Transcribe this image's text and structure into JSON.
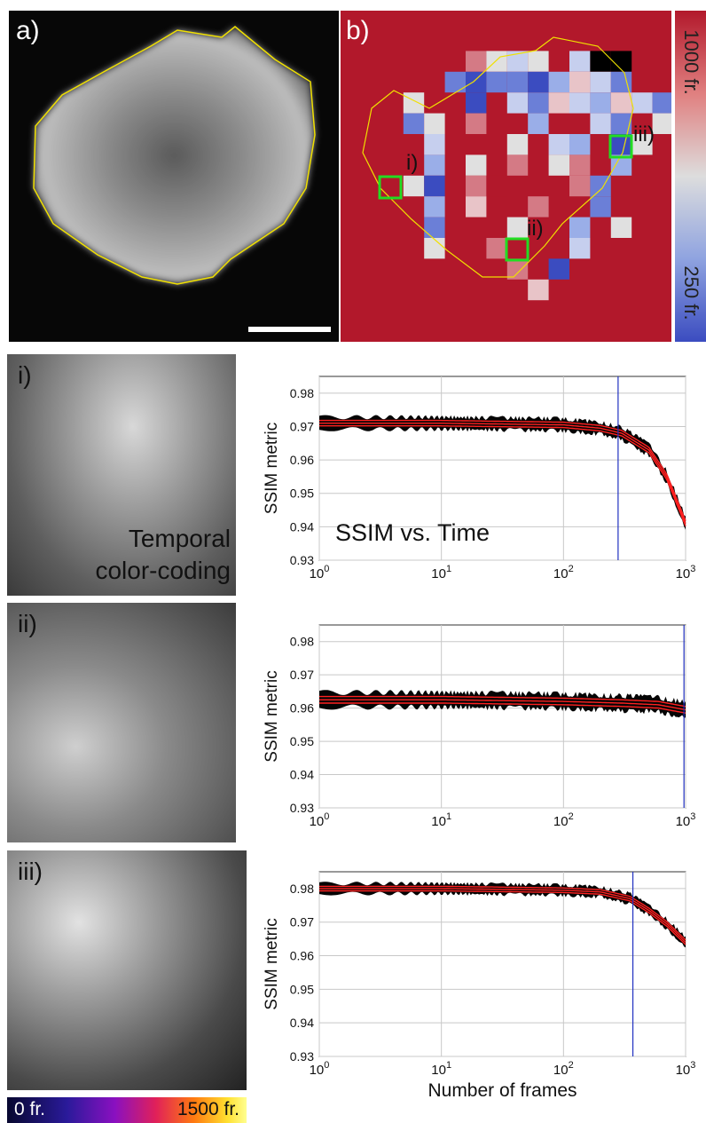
{
  "panels": {
    "a_label": "a)",
    "b_label": "b)",
    "roi_labels": [
      "i)",
      "ii)",
      "iii)"
    ],
    "colorbar_top": "1000 fr.",
    "colorbar_bottom": "250 fr.",
    "temporal_caption_1": "Temporal",
    "temporal_caption_2": "color-coding",
    "time_bar_left": "0 fr.",
    "time_bar_right": "1500 fr.",
    "title_plot1": "SSIM vs. Time"
  },
  "colors": {
    "heat_red": "#b2182b",
    "heat_blue": "#3b4cc0",
    "outline_yellow": "#f0e000",
    "roi_green": "#22dd22",
    "fit_red": "#ff2020",
    "marker_blue": "#2030c0"
  },
  "chart_data": [
    {
      "type": "line",
      "title": "SSIM vs. Time",
      "xlabel": "",
      "ylabel": "SSIM metric",
      "xscale": "log",
      "xlim": [
        1,
        1000
      ],
      "ylim": [
        0.93,
        0.985
      ],
      "xticks": [
        "10^0",
        "10^1",
        "10^2",
        "10^3"
      ],
      "yticks": [
        "0.93",
        "0.94",
        "0.95",
        "0.96",
        "0.97",
        "0.98"
      ],
      "grid": true,
      "marker_frame": 280,
      "series": [
        {
          "x": [
            1,
            10,
            100,
            200,
            300,
            500,
            700,
            1000
          ],
          "values": [
            0.971,
            0.971,
            0.9705,
            0.9695,
            0.968,
            0.963,
            0.955,
            0.941
          ]
        }
      ]
    },
    {
      "type": "line",
      "xlabel": "",
      "ylabel": "SSIM metric",
      "xscale": "log",
      "xlim": [
        1,
        1000
      ],
      "ylim": [
        0.93,
        0.985
      ],
      "xticks": [
        "10^0",
        "10^1",
        "10^2",
        "10^3"
      ],
      "yticks": [
        "0.93",
        "0.94",
        "0.95",
        "0.96",
        "0.97",
        "0.98"
      ],
      "grid": true,
      "marker_frame": 970,
      "series": [
        {
          "x": [
            1,
            10,
            100,
            300,
            600,
            1000
          ],
          "values": [
            0.9625,
            0.9625,
            0.962,
            0.9615,
            0.961,
            0.9595
          ]
        }
      ]
    },
    {
      "type": "line",
      "xlabel": "Number of frames",
      "ylabel": "SSIM metric",
      "xscale": "log",
      "xlim": [
        1,
        1000
      ],
      "ylim": [
        0.93,
        0.985
      ],
      "xticks": [
        "10^0",
        "10^1",
        "10^2",
        "10^3"
      ],
      "yticks": [
        "0.93",
        "0.94",
        "0.95",
        "0.96",
        "0.97",
        "0.98"
      ],
      "grid": true,
      "marker_frame": 370,
      "series": [
        {
          "x": [
            1,
            10,
            100,
            200,
            350,
            500,
            700,
            1000
          ],
          "values": [
            0.98,
            0.98,
            0.9795,
            0.979,
            0.977,
            0.9735,
            0.9695,
            0.964
          ]
        }
      ]
    }
  ]
}
